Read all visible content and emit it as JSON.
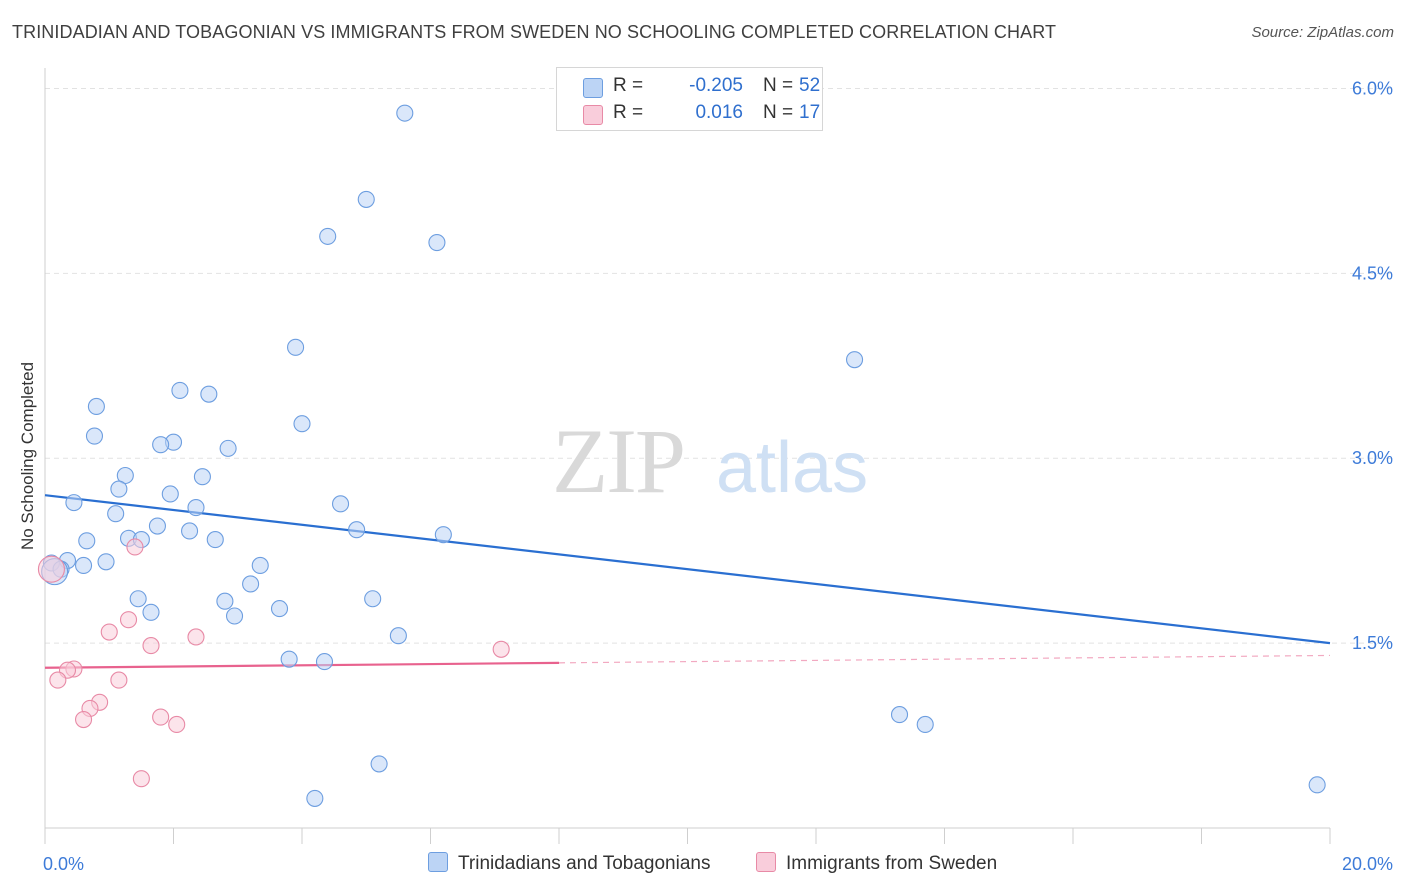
{
  "title": "TRINIDADIAN AND TOBAGONIAN VS IMMIGRANTS FROM SWEDEN NO SCHOOLING COMPLETED CORRELATION CHART",
  "source": "Source: ZipAtlas.com",
  "watermark": {
    "zip": "ZIP",
    "atlas": "atlas"
  },
  "legend": {
    "rows": [
      {
        "r_label": "R =",
        "r_value": "-0.205",
        "n_label": "N =",
        "n_value": "52",
        "color": "#a9c8f2",
        "border": "#6d9ee0"
      },
      {
        "r_label": "R =",
        "r_value": "0.016",
        "n_label": "N =",
        "n_value": "17",
        "color": "#f7bfd0",
        "border": "#e88aa6"
      }
    ]
  },
  "chart_data": {
    "type": "scatter",
    "title": "TRINIDADIAN AND TOBAGONIAN VS IMMIGRANTS FROM SWEDEN NO SCHOOLING COMPLETED CORRELATION CHART",
    "xlabel": "",
    "ylabel": "No Schooling Completed",
    "xlim": [
      0,
      20
    ],
    "ylim": [
      0,
      6.15
    ],
    "x_tick_labels": [
      {
        "value": 0,
        "label": "0.0%"
      },
      {
        "value": 20,
        "label": "20.0%"
      }
    ],
    "y_tick_labels": [
      {
        "value": 1.5,
        "label": "1.5%"
      },
      {
        "value": 3.0,
        "label": "3.0%"
      },
      {
        "value": 4.5,
        "label": "4.5%"
      },
      {
        "value": 6.0,
        "label": "6.0%"
      }
    ],
    "series": [
      {
        "name": "Trinidadians and Tobagonians",
        "color": "#6d9ee0",
        "fill": "#bcd4f5",
        "trend": {
          "x": [
            0,
            20
          ],
          "y": [
            2.7,
            1.5
          ],
          "color": "#2a6fd1"
        },
        "points": [
          {
            "x": 5.6,
            "y": 5.8
          },
          {
            "x": 5.0,
            "y": 5.1
          },
          {
            "x": 4.4,
            "y": 4.8
          },
          {
            "x": 6.1,
            "y": 4.75
          },
          {
            "x": 3.9,
            "y": 3.9
          },
          {
            "x": 12.6,
            "y": 3.8
          },
          {
            "x": 2.1,
            "y": 3.55
          },
          {
            "x": 2.55,
            "y": 3.52
          },
          {
            "x": 0.8,
            "y": 3.42
          },
          {
            "x": 0.77,
            "y": 3.18
          },
          {
            "x": 4.0,
            "y": 3.28
          },
          {
            "x": 2.0,
            "y": 3.13
          },
          {
            "x": 1.8,
            "y": 3.11
          },
          {
            "x": 2.85,
            "y": 3.08
          },
          {
            "x": 1.25,
            "y": 2.86
          },
          {
            "x": 2.45,
            "y": 2.85
          },
          {
            "x": 1.15,
            "y": 2.75
          },
          {
            "x": 1.95,
            "y": 2.71
          },
          {
            "x": 0.45,
            "y": 2.64
          },
          {
            "x": 4.6,
            "y": 2.63
          },
          {
            "x": 2.35,
            "y": 2.6
          },
          {
            "x": 1.1,
            "y": 2.55
          },
          {
            "x": 1.75,
            "y": 2.45
          },
          {
            "x": 2.25,
            "y": 2.41
          },
          {
            "x": 4.85,
            "y": 2.42
          },
          {
            "x": 6.2,
            "y": 2.38
          },
          {
            "x": 1.3,
            "y": 2.35
          },
          {
            "x": 1.5,
            "y": 2.34
          },
          {
            "x": 2.65,
            "y": 2.34
          },
          {
            "x": 0.65,
            "y": 2.33
          },
          {
            "x": 0.1,
            "y": 2.15
          },
          {
            "x": 0.35,
            "y": 2.17
          },
          {
            "x": 0.95,
            "y": 2.16
          },
          {
            "x": 0.6,
            "y": 2.13
          },
          {
            "x": 3.35,
            "y": 2.13
          },
          {
            "x": 0.25,
            "y": 2.1
          },
          {
            "x": 3.2,
            "y": 1.98
          },
          {
            "x": 1.45,
            "y": 1.86
          },
          {
            "x": 2.8,
            "y": 1.84
          },
          {
            "x": 5.1,
            "y": 1.86
          },
          {
            "x": 3.65,
            "y": 1.78
          },
          {
            "x": 1.65,
            "y": 1.75
          },
          {
            "x": 2.95,
            "y": 1.72
          },
          {
            "x": 5.5,
            "y": 1.56
          },
          {
            "x": 3.8,
            "y": 1.37
          },
          {
            "x": 4.35,
            "y": 1.35
          },
          {
            "x": 13.3,
            "y": 0.92
          },
          {
            "x": 13.7,
            "y": 0.84
          },
          {
            "x": 5.2,
            "y": 0.52
          },
          {
            "x": 19.8,
            "y": 0.35
          },
          {
            "x": 4.2,
            "y": 0.24
          },
          {
            "x": 0.15,
            "y": 2.08
          }
        ]
      },
      {
        "name": "Immigrants from Sweden",
        "color": "#e88aa6",
        "fill": "#f9cddb",
        "trend": {
          "x": [
            0,
            8
          ],
          "y": [
            1.3,
            1.34
          ],
          "color": "#e8628e",
          "dashed_to": 20,
          "dashed_y": 1.4
        },
        "points": [
          {
            "x": 0.1,
            "y": 2.1
          },
          {
            "x": 1.4,
            "y": 2.28
          },
          {
            "x": 1.3,
            "y": 1.69
          },
          {
            "x": 1.0,
            "y": 1.59
          },
          {
            "x": 2.35,
            "y": 1.55
          },
          {
            "x": 1.65,
            "y": 1.48
          },
          {
            "x": 7.1,
            "y": 1.45
          },
          {
            "x": 0.45,
            "y": 1.29
          },
          {
            "x": 0.35,
            "y": 1.28
          },
          {
            "x": 0.2,
            "y": 1.2
          },
          {
            "x": 1.15,
            "y": 1.2
          },
          {
            "x": 0.85,
            "y": 1.02
          },
          {
            "x": 0.7,
            "y": 0.97
          },
          {
            "x": 0.6,
            "y": 0.88
          },
          {
            "x": 1.8,
            "y": 0.9
          },
          {
            "x": 2.05,
            "y": 0.84
          },
          {
            "x": 1.5,
            "y": 0.4
          }
        ]
      }
    ]
  },
  "bottom_legend": [
    {
      "label": "Trinidadians and Tobagonians",
      "color": "#bcd4f5",
      "border": "#6d9ee0"
    },
    {
      "label": "Immigrants from Sweden",
      "color": "#f9cddb",
      "border": "#e88aa6"
    }
  ]
}
